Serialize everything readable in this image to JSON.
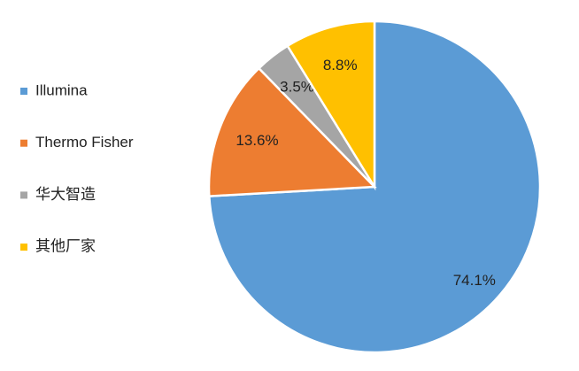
{
  "chart_data": {
    "type": "pie",
    "categories": [
      "Illumina",
      "Thermo Fisher",
      "华大智造",
      "其他厂家"
    ],
    "values": [
      74.1,
      13.6,
      3.5,
      8.8
    ],
    "value_labels": [
      "74.1%",
      "13.6%",
      "3.5%",
      "8.8%"
    ],
    "colors": [
      "#5b9bd5",
      "#ed7d31",
      "#a5a5a5",
      "#ffc000"
    ],
    "legend": "left"
  }
}
